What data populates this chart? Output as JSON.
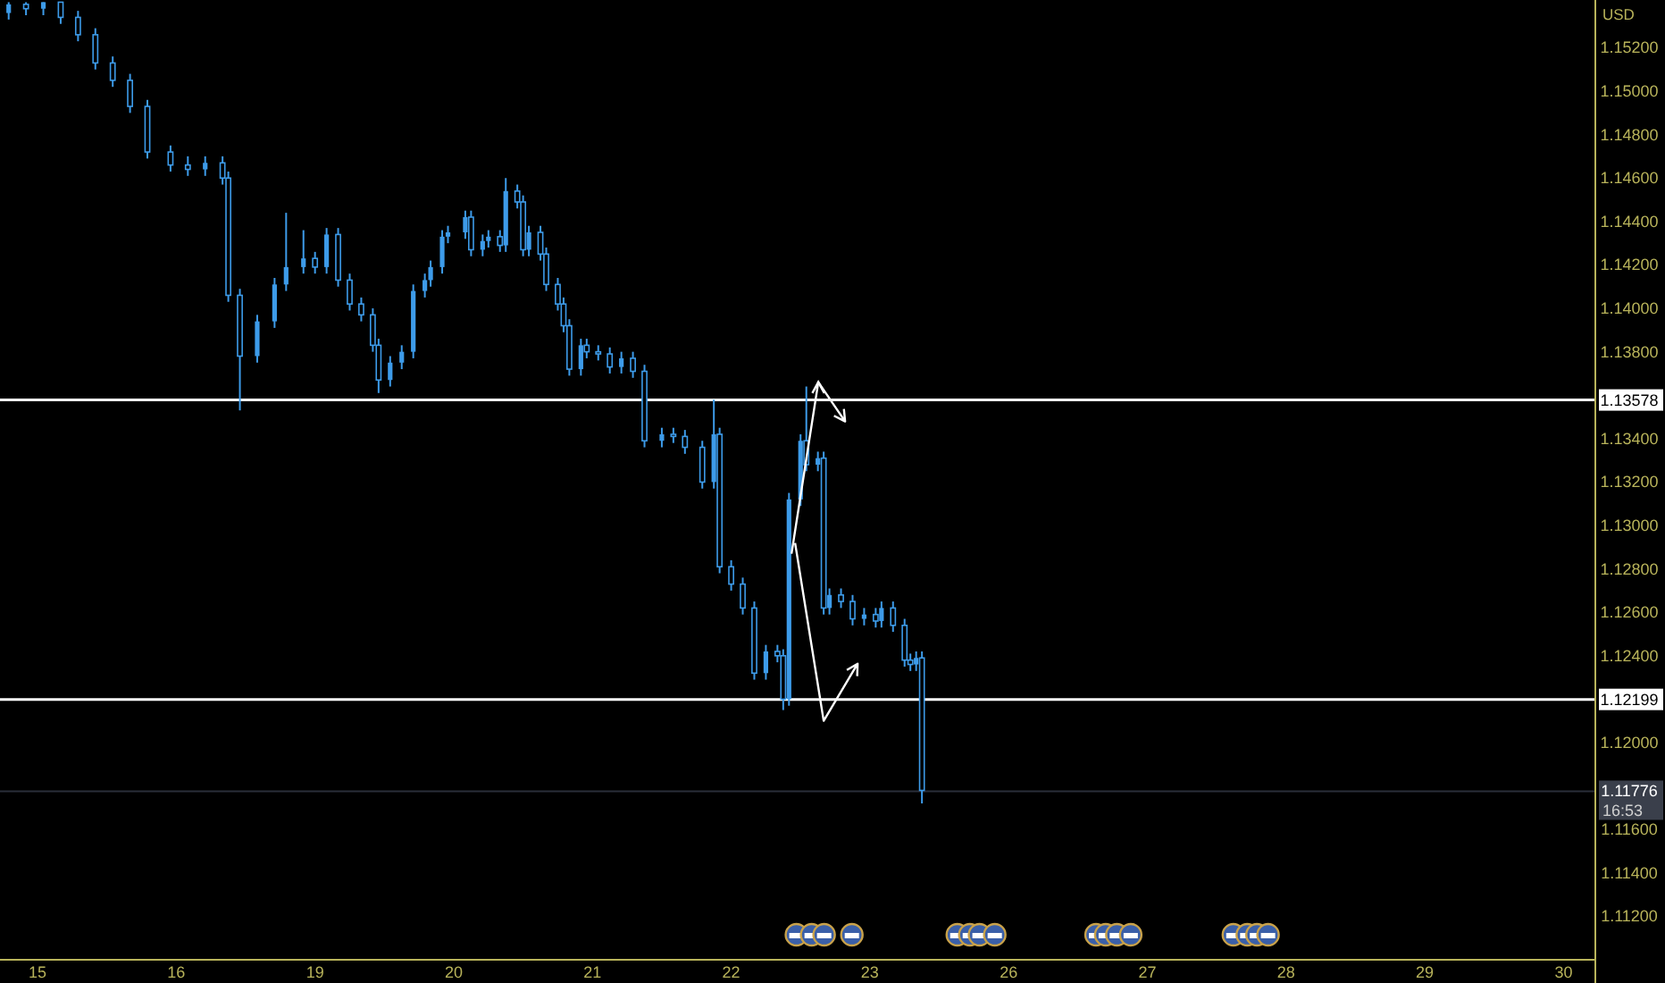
{
  "chart_data": {
    "type": "candlestick",
    "ylabel": "USD",
    "color": "#3d9be9",
    "categories": [
      null,
      null,
      null,
      null,
      null,
      null,
      "15",
      null,
      null,
      null,
      null,
      null,
      null,
      null,
      null,
      null,
      null,
      null,
      null,
      null,
      null,
      null,
      null,
      null,
      null,
      null,
      null,
      null,
      null,
      null,
      "16",
      null,
      null,
      null,
      null,
      null,
      null,
      null,
      null,
      null,
      null,
      null,
      null,
      null,
      null,
      null,
      null,
      null,
      null,
      null,
      null,
      null,
      null,
      null,
      "19",
      null,
      null,
      null,
      null,
      null,
      null,
      null,
      null,
      null,
      null,
      null,
      null,
      null,
      null,
      null,
      null,
      null,
      null,
      null,
      null,
      null,
      null,
      null,
      "20",
      null,
      null,
      null,
      null,
      null,
      null,
      null,
      null,
      null,
      null,
      null,
      null,
      null,
      null,
      null,
      null,
      null,
      null,
      null,
      null,
      null,
      null,
      null,
      "21",
      null,
      null,
      null,
      null,
      null,
      null,
      null,
      null,
      null,
      null,
      null,
      null,
      null,
      null,
      null,
      null,
      null,
      null,
      null,
      null,
      null,
      null,
      null,
      "22",
      null,
      null,
      null,
      null,
      null,
      null,
      null,
      null,
      null,
      null,
      null,
      null,
      null,
      null,
      null,
      null,
      null,
      null,
      null,
      null,
      null,
      null,
      null,
      "23",
      null,
      null,
      null,
      null,
      null,
      null,
      null,
      null,
      null,
      null,
      null,
      null,
      null,
      null,
      null,
      null,
      null,
      null,
      null,
      null,
      null,
      null,
      null,
      "26",
      null,
      null,
      null,
      null,
      null,
      null,
      null,
      null,
      null,
      null,
      null,
      null,
      null,
      null,
      null,
      null,
      null,
      null,
      null,
      null,
      null,
      null,
      null,
      "27",
      null,
      null,
      null,
      null,
      null,
      null,
      null,
      null,
      null,
      null,
      null,
      null,
      null,
      null,
      null,
      null,
      null,
      null,
      null,
      null,
      null,
      null,
      null,
      "28",
      null,
      null,
      null,
      null,
      null,
      null,
      null,
      null,
      null,
      null,
      null,
      null,
      null,
      null,
      null,
      null,
      null,
      null,
      null,
      null,
      null,
      null,
      null,
      "29",
      null,
      null,
      null,
      null,
      null,
      null,
      null,
      null,
      null,
      null,
      null,
      null,
      null,
      null,
      null,
      null,
      null,
      null,
      null,
      null,
      null,
      null,
      null,
      "30",
      null,
      null,
      null,
      null,
      null
    ],
    "ohlc": [
      null,
      [
        1.1536,
        1.1541,
        1.1533,
        1.154
      ],
      null,
      null,
      [
        1.154,
        1.1541,
        1.1535,
        1.1538
      ],
      null,
      null,
      [
        1.1538,
        1.1541,
        1.1535,
        1.1541
      ],
      null,
      null,
      [
        1.1541,
        1.1541,
        1.1531,
        1.1534
      ],
      null,
      null,
      [
        1.1534,
        1.1537,
        1.1523,
        1.1526
      ],
      null,
      null,
      [
        1.1526,
        1.1529,
        1.151,
        1.1513
      ],
      null,
      null,
      [
        1.1513,
        1.1516,
        1.1502,
        1.1505
      ],
      null,
      null,
      [
        1.1505,
        1.1508,
        1.149,
        1.1493
      ],
      null,
      null,
      [
        1.1493,
        1.1496,
        1.1469,
        1.1472
      ],
      null,
      null,
      null,
      [
        1.1472,
        1.1475,
        1.1463,
        1.1466
      ],
      null,
      null,
      [
        1.1466,
        1.147,
        1.1461,
        1.1464
      ],
      null,
      null,
      [
        1.1464,
        1.147,
        1.1461,
        1.1467
      ],
      null,
      null,
      [
        1.1467,
        1.147,
        1.1457,
        1.146
      ],
      [
        1.146,
        1.1463,
        1.1403,
        1.1406
      ],
      null,
      [
        1.1406,
        1.1409,
        1.1353,
        1.1378
      ],
      null,
      null,
      [
        1.1378,
        1.1397,
        1.1375,
        1.1394
      ],
      null,
      null,
      [
        1.1394,
        1.1414,
        1.1391,
        1.1411
      ],
      null,
      [
        1.1411,
        1.1444,
        1.1408,
        1.1419
      ],
      null,
      null,
      [
        1.1419,
        1.1436,
        1.1416,
        1.1423
      ],
      null,
      [
        1.1423,
        1.1426,
        1.1416,
        1.1419
      ],
      null,
      [
        1.1419,
        1.1437,
        1.1416,
        1.1434
      ],
      null,
      [
        1.1434,
        1.1437,
        1.141,
        1.1413
      ],
      null,
      [
        1.1413,
        1.1416,
        1.1399,
        1.1402
      ],
      null,
      [
        1.1402,
        1.1405,
        1.1394,
        1.1397
      ],
      null,
      [
        1.1397,
        1.14,
        1.138,
        1.1383
      ],
      [
        1.1383,
        1.1386,
        1.1361,
        1.1367
      ],
      null,
      [
        1.1367,
        1.1378,
        1.1364,
        1.1375
      ],
      null,
      [
        1.1375,
        1.1383,
        1.1372,
        1.138
      ],
      null,
      [
        1.138,
        1.1411,
        1.1377,
        1.1408
      ],
      null,
      [
        1.1408,
        1.1416,
        1.1405,
        1.1413
      ],
      [
        1.1413,
        1.1422,
        1.141,
        1.1419
      ],
      null,
      [
        1.1419,
        1.1436,
        1.1416,
        1.1433
      ],
      [
        1.1433,
        1.1438,
        1.143,
        1.1435
      ],
      null,
      null,
      [
        1.1435,
        1.1445,
        1.1432,
        1.1442
      ],
      [
        1.1442,
        1.1445,
        1.1424,
        1.1427
      ],
      null,
      [
        1.1427,
        1.1434,
        1.1424,
        1.1431
      ],
      [
        1.1431,
        1.1436,
        1.1428,
        1.1433
      ],
      null,
      [
        1.1433,
        1.1436,
        1.1426,
        1.1429
      ],
      [
        1.1429,
        1.146,
        1.1426,
        1.1454
      ],
      null,
      [
        1.1454,
        1.1457,
        1.1446,
        1.1449
      ],
      [
        1.1449,
        1.1452,
        1.1424,
        1.1427
      ],
      [
        1.1427,
        1.1438,
        1.1424,
        1.1435
      ],
      null,
      [
        1.1435,
        1.1438,
        1.1422,
        1.1425
      ],
      [
        1.1425,
        1.1428,
        1.1408,
        1.1411
      ],
      null,
      [
        1.1411,
        1.1414,
        1.1399,
        1.1402
      ],
      [
        1.1402,
        1.1405,
        1.1389,
        1.1392
      ],
      [
        1.1392,
        1.1395,
        1.1369,
        1.1372
      ],
      null,
      [
        1.1372,
        1.1386,
        1.1369,
        1.1383
      ],
      [
        1.1383,
        1.1386,
        1.1377,
        1.138
      ],
      null,
      [
        1.138,
        1.1383,
        1.1376,
        1.1379
      ],
      null,
      [
        1.1379,
        1.1382,
        1.137,
        1.1373
      ],
      null,
      [
        1.1373,
        1.138,
        1.137,
        1.1377
      ],
      null,
      [
        1.1377,
        1.138,
        1.1368,
        1.1371
      ],
      null,
      [
        1.1371,
        1.1374,
        1.1336,
        1.1339
      ],
      null,
      null,
      [
        1.1339,
        1.1345,
        1.1336,
        1.1342
      ],
      null,
      [
        1.1342,
        1.1345,
        1.1338,
        1.1341
      ],
      null,
      [
        1.1341,
        1.1344,
        1.1333,
        1.1336
      ],
      null,
      null,
      [
        1.1336,
        1.1339,
        1.1317,
        1.132
      ],
      null,
      [
        1.132,
        1.1358,
        1.1317,
        1.1342
      ],
      [
        1.1342,
        1.1345,
        1.1278,
        1.1281
      ],
      null,
      [
        1.1281,
        1.1284,
        1.127,
        1.1273
      ],
      null,
      [
        1.1273,
        1.1276,
        1.1259,
        1.1262
      ],
      null,
      [
        1.1262,
        1.1265,
        1.1229,
        1.1232
      ],
      null,
      [
        1.1232,
        1.1245,
        1.1229,
        1.1242
      ],
      null,
      [
        1.1242,
        1.1245,
        1.1237,
        1.124
      ],
      [
        1.124,
        1.1243,
        1.1215,
        1.122
      ],
      [
        1.122,
        1.1315,
        1.1217,
        1.1312
      ],
      null,
      [
        1.1312,
        1.1342,
        1.1309,
        1.1339
      ],
      [
        1.1339,
        1.1364,
        1.1325,
        1.1328
      ],
      null,
      [
        1.1328,
        1.1334,
        1.1325,
        1.1331
      ],
      [
        1.1331,
        1.1334,
        1.1259,
        1.1262
      ],
      [
        1.1262,
        1.1271,
        1.1259,
        1.1268
      ],
      null,
      [
        1.1268,
        1.1271,
        1.1262,
        1.1265
      ],
      null,
      [
        1.1265,
        1.1268,
        1.1254,
        1.1257
      ],
      null,
      [
        1.1257,
        1.1262,
        1.1254,
        1.1259
      ],
      null,
      [
        1.1259,
        1.1262,
        1.1253,
        1.1256
      ],
      [
        1.1256,
        1.1265,
        1.1253,
        1.1262
      ],
      null,
      [
        1.1262,
        1.1265,
        1.1251,
        1.1254
      ],
      null,
      [
        1.1254,
        1.1257,
        1.1235,
        1.1238
      ],
      [
        1.1238,
        1.1241,
        1.1233,
        1.1236
      ],
      [
        1.1236,
        1.1242,
        1.1233,
        1.1239
      ],
      [
        1.1239,
        1.1242,
        1.1172,
        1.1178
      ],
      null,
      null,
      null,
      null,
      null,
      null,
      null,
      null,
      null,
      null,
      null,
      null,
      null,
      null,
      null,
      null,
      null,
      null,
      null,
      null,
      null,
      null,
      null,
      null,
      null,
      null,
      null,
      null,
      null,
      null,
      null,
      null,
      null,
      null,
      null,
      null,
      null,
      null,
      null,
      null,
      null,
      null,
      null,
      null,
      null,
      null,
      null,
      null,
      null,
      null,
      null,
      null,
      null,
      null,
      null,
      null,
      null,
      null,
      null,
      null,
      null,
      null,
      null,
      null,
      null,
      null,
      null,
      null,
      null,
      null,
      null,
      null,
      null,
      null,
      null,
      null,
      null,
      null,
      null,
      null,
      null,
      null,
      null,
      null,
      null,
      null,
      null,
      null,
      null,
      null,
      null,
      null,
      null,
      null,
      null,
      null,
      null,
      null,
      null,
      null,
      null,
      null,
      null,
      null,
      null,
      null,
      null,
      null,
      null,
      null,
      null,
      null,
      null,
      null,
      null,
      null
    ],
    "ylim": [
      1.11,
      1.1542
    ],
    "yticks": [
      {
        "value": 1.112,
        "label": "1.11200"
      },
      {
        "value": 1.114,
        "label": "1.11400"
      },
      {
        "value": 1.116,
        "label": "1.11600"
      },
      {
        "value": 1.12,
        "label": "1.12000"
      },
      {
        "value": 1.124,
        "label": "1.12400"
      },
      {
        "value": 1.126,
        "label": "1.12600"
      },
      {
        "value": 1.128,
        "label": "1.12800"
      },
      {
        "value": 1.13,
        "label": "1.13000"
      },
      {
        "value": 1.132,
        "label": "1.13200"
      },
      {
        "value": 1.134,
        "label": "1.13400"
      },
      {
        "value": 1.138,
        "label": "1.13800"
      },
      {
        "value": 1.14,
        "label": "1.14000"
      },
      {
        "value": 1.142,
        "label": "1.14200"
      },
      {
        "value": 1.144,
        "label": "1.14400"
      },
      {
        "value": 1.146,
        "label": "1.14600"
      },
      {
        "value": 1.148,
        "label": "1.14800"
      },
      {
        "value": 1.15,
        "label": "1.15000"
      },
      {
        "value": 1.152,
        "label": "1.15200"
      }
    ],
    "ref_lines": [
      {
        "axis": "y",
        "value": 1.13578,
        "label": "1.13578",
        "color": "#ffffff"
      },
      {
        "axis": "y",
        "value": 1.12199,
        "label": "1.12199",
        "color": "#ffffff"
      },
      {
        "axis": "y",
        "value": 1.11776,
        "label": "1.11776",
        "color": "#2a2e39"
      }
    ],
    "annotations": [
      "16:53"
    ]
  }
}
